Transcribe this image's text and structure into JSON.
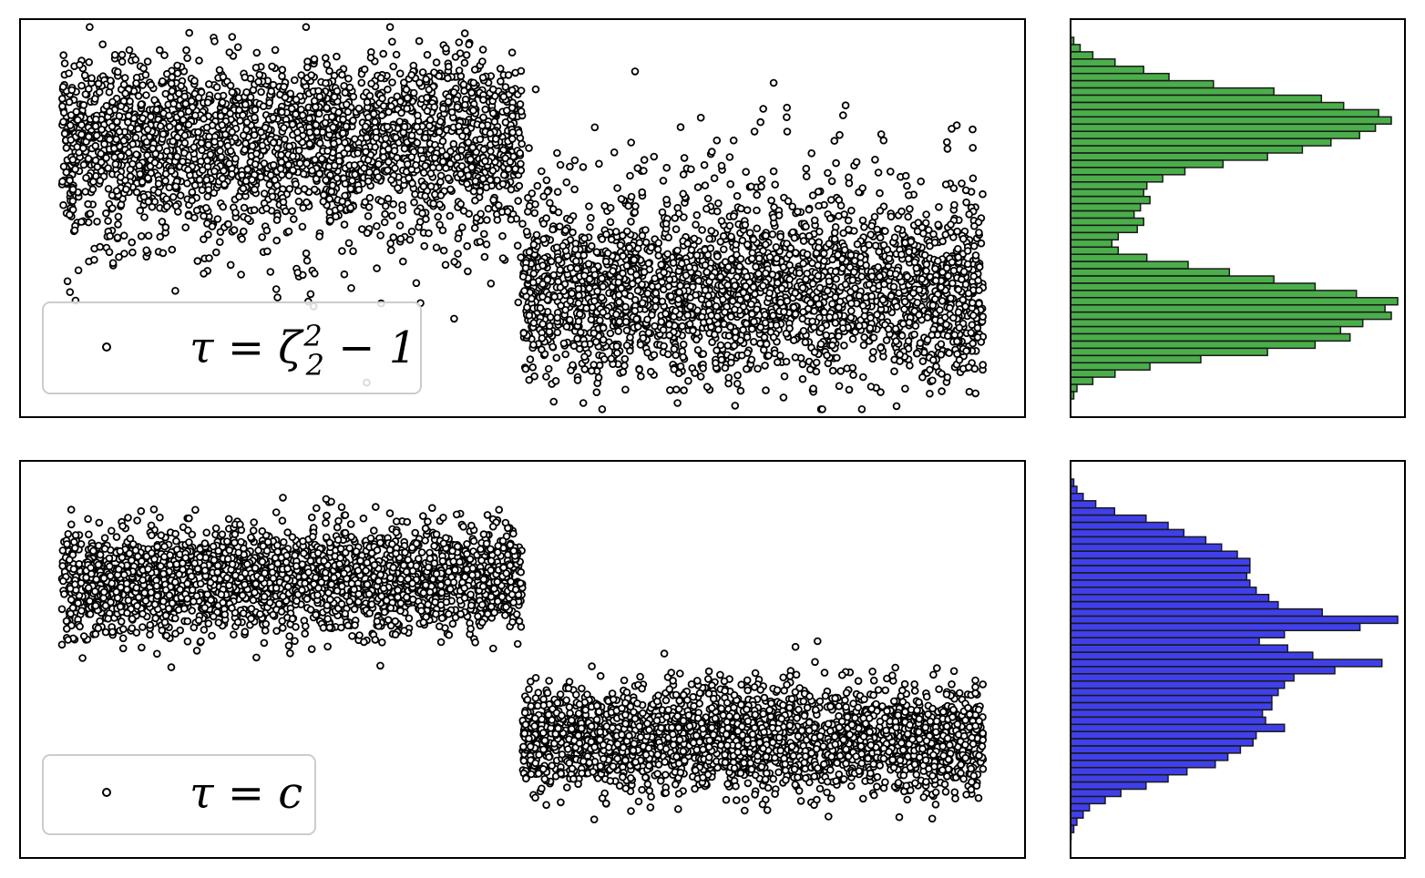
{
  "chart_data": [
    {
      "type": "scatter",
      "panel": "top-left",
      "title": "",
      "xlabel": "",
      "ylabel": "",
      "ticks": "none",
      "grid": false,
      "legend": {
        "placement": "lower-left",
        "label_parts": [
          "τ = ζ",
          "2",
          "2",
          " − 1"
        ],
        "marker": "open-circle"
      },
      "marker": {
        "shape": "circle",
        "fill": "#ffffff",
        "edge": "#000000"
      },
      "series": [
        {
          "x_range": [
            0,
            0.48
          ],
          "y_center": 0.72,
          "y_spread": 0.09,
          "tail": "down",
          "count": 2600
        },
        {
          "x_range": [
            0.48,
            0.96
          ],
          "y_center": 0.28,
          "y_spread": 0.09,
          "tail": "up",
          "count": 2600
        }
      ]
    },
    {
      "type": "bar",
      "orientation": "horizontal",
      "panel": "top-right",
      "color": "#2ca02c",
      "edge": "#1a1a1a",
      "counts": [
        1,
        3,
        7,
        14,
        23,
        31,
        45,
        64,
        79,
        86,
        97,
        101,
        96,
        91,
        82,
        73,
        62,
        48,
        36,
        29,
        24,
        23,
        25,
        22,
        20,
        23,
        21,
        15,
        13,
        15,
        24,
        37,
        50,
        64,
        77,
        90,
        103,
        99,
        101,
        92,
        85,
        88,
        77,
        62,
        41,
        25,
        14,
        7,
        2,
        1
      ]
    },
    {
      "type": "scatter",
      "panel": "bottom-left",
      "title": "",
      "xlabel": "",
      "ylabel": "",
      "ticks": "none",
      "grid": false,
      "legend": {
        "placement": "lower-left",
        "label": "τ = c",
        "marker": "open-circle"
      },
      "marker": {
        "shape": "circle",
        "fill": "#ffffff",
        "edge": "#000000"
      },
      "series": [
        {
          "x_range": [
            0,
            0.48
          ],
          "y_center": 0.7,
          "y_spread": 0.065,
          "tail": "none",
          "count": 2600
        },
        {
          "x_range": [
            0.48,
            0.96
          ],
          "y_center": 0.3,
          "y_spread": 0.065,
          "tail": "none",
          "count": 2600
        }
      ]
    },
    {
      "type": "bar",
      "orientation": "horizontal",
      "panel": "bottom-right",
      "color": "#1f1fe6",
      "edge": "#1a1a1a",
      "counts": [
        1,
        2,
        4,
        8,
        14,
        24,
        31,
        36,
        43,
        48,
        53,
        57,
        57,
        56,
        57,
        59,
        63,
        66,
        80,
        104,
        92,
        68,
        60,
        69,
        77,
        99,
        84,
        71,
        68,
        66,
        64,
        64,
        61,
        62,
        68,
        59,
        58,
        54,
        50,
        46,
        37,
        31,
        24,
        16,
        11,
        6,
        4,
        2,
        1,
        0
      ]
    }
  ]
}
